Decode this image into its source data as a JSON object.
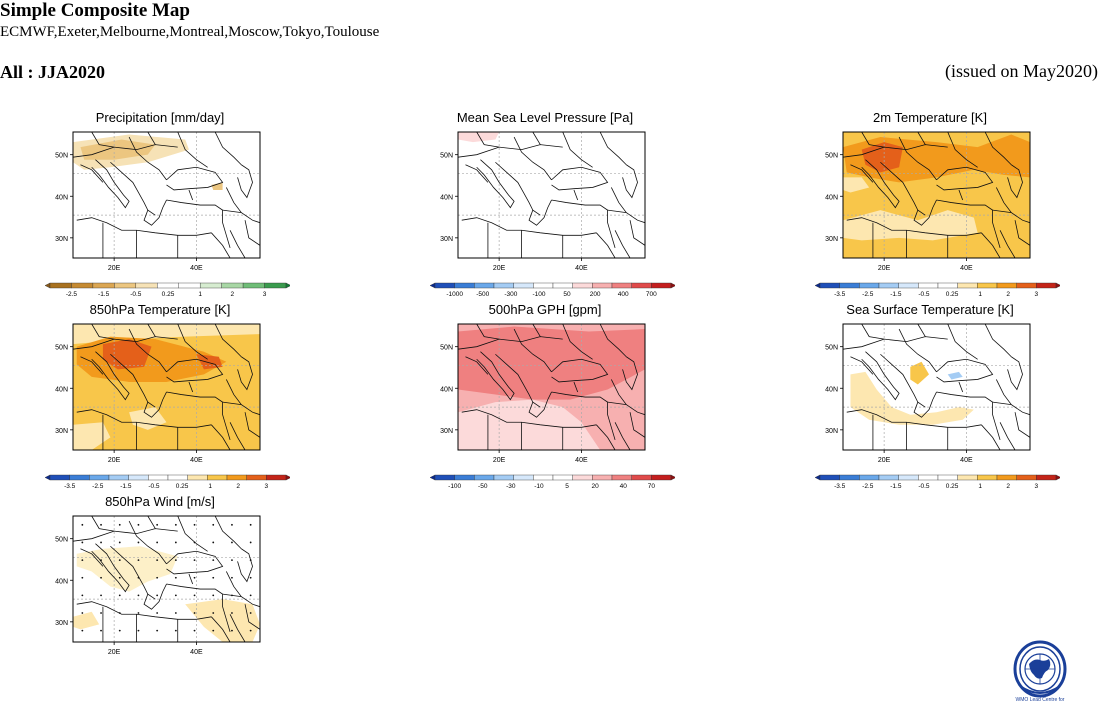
{
  "header": {
    "title": "Simple Composite Map",
    "models": "ECMWF,Exeter,Melbourne,Montreal,Moscow,Tokyo,Toulouse",
    "season": "All : JJA2020",
    "issued": "(issued on May2020)"
  },
  "map_axes": {
    "lat_labels": [
      "50N",
      "40N",
      "30N"
    ],
    "lon_labels": [
      "20E",
      "40E"
    ]
  },
  "palettes": {
    "brown_green": [
      "#8a5a1a",
      "#a8711f",
      "#c58a32",
      "#dba652",
      "#ecc680",
      "#f6e2b6",
      "#ffffff",
      "#ffffff",
      "#d6ecd0",
      "#a8d7a5",
      "#6fbd77",
      "#3a9b4e",
      "#137a36"
    ],
    "blue_red": [
      "#0b2a8f",
      "#1f4fb8",
      "#3a7dd6",
      "#6aa8ea",
      "#a4ccf4",
      "#d6e8fb",
      "#ffffff",
      "#ffffff",
      "#fde7b0",
      "#f8c64a",
      "#f29a1c",
      "#e4601a",
      "#c42418",
      "#8f0f10"
    ],
    "blue_red_pink": [
      "#0b2a8f",
      "#1f4fb8",
      "#3a7dd6",
      "#6aa8ea",
      "#a4ccf4",
      "#d6e8fb",
      "#ffffff",
      "#ffffff",
      "#fcdada",
      "#f7b0b0",
      "#ef8080",
      "#e04a4a",
      "#c41e1e",
      "#8f0f10"
    ]
  },
  "panels": [
    {
      "id": "precip",
      "title": "Precipitation [mm/day]",
      "palette": "brown_green",
      "fill": "precip",
      "cb_labels": [
        "-2.5",
        "-1.5",
        "-0.5",
        "0.25",
        "1",
        "2",
        "3"
      ]
    },
    {
      "id": "mslp",
      "title": "Mean Sea Level Pressure [Pa]",
      "palette": "blue_red_pink",
      "fill": "mslp",
      "cb_labels": [
        "-1000",
        "-500",
        "-300",
        "-100",
        "50",
        "200",
        "400",
        "700"
      ]
    },
    {
      "id": "t2m",
      "title": "2m Temperature [K]",
      "palette": "blue_red",
      "fill": "t2m",
      "cb_labels": [
        "-3.5",
        "-2.5",
        "-1.5",
        "-0.5",
        "0.25",
        "1",
        "2",
        "3"
      ]
    },
    {
      "id": "t850",
      "title": "850hPa Temperature [K]",
      "palette": "blue_red",
      "fill": "t850",
      "cb_labels": [
        "-3.5",
        "-2.5",
        "-1.5",
        "-0.5",
        "0.25",
        "1",
        "2",
        "3"
      ]
    },
    {
      "id": "gph500",
      "title": "500hPa GPH [gpm]",
      "palette": "blue_red_pink",
      "fill": "gph",
      "cb_labels": [
        "-100",
        "-50",
        "-30",
        "-10",
        "5",
        "20",
        "40",
        "70"
      ]
    },
    {
      "id": "sst",
      "title": "Sea Surface Temperature [K]",
      "palette": "blue_red",
      "fill": "sst",
      "cb_labels": [
        "-3.5",
        "-2.5",
        "-1.5",
        "-0.5",
        "0.25",
        "1",
        "2",
        "3"
      ]
    },
    {
      "id": "wind850",
      "title": "850hPa Wind [m/s]",
      "palette": "none",
      "fill": "wind",
      "cb_labels": []
    }
  ],
  "logo": {
    "icon": "wmo-emblem-icon",
    "text": "WMO Lead Centre for"
  }
}
